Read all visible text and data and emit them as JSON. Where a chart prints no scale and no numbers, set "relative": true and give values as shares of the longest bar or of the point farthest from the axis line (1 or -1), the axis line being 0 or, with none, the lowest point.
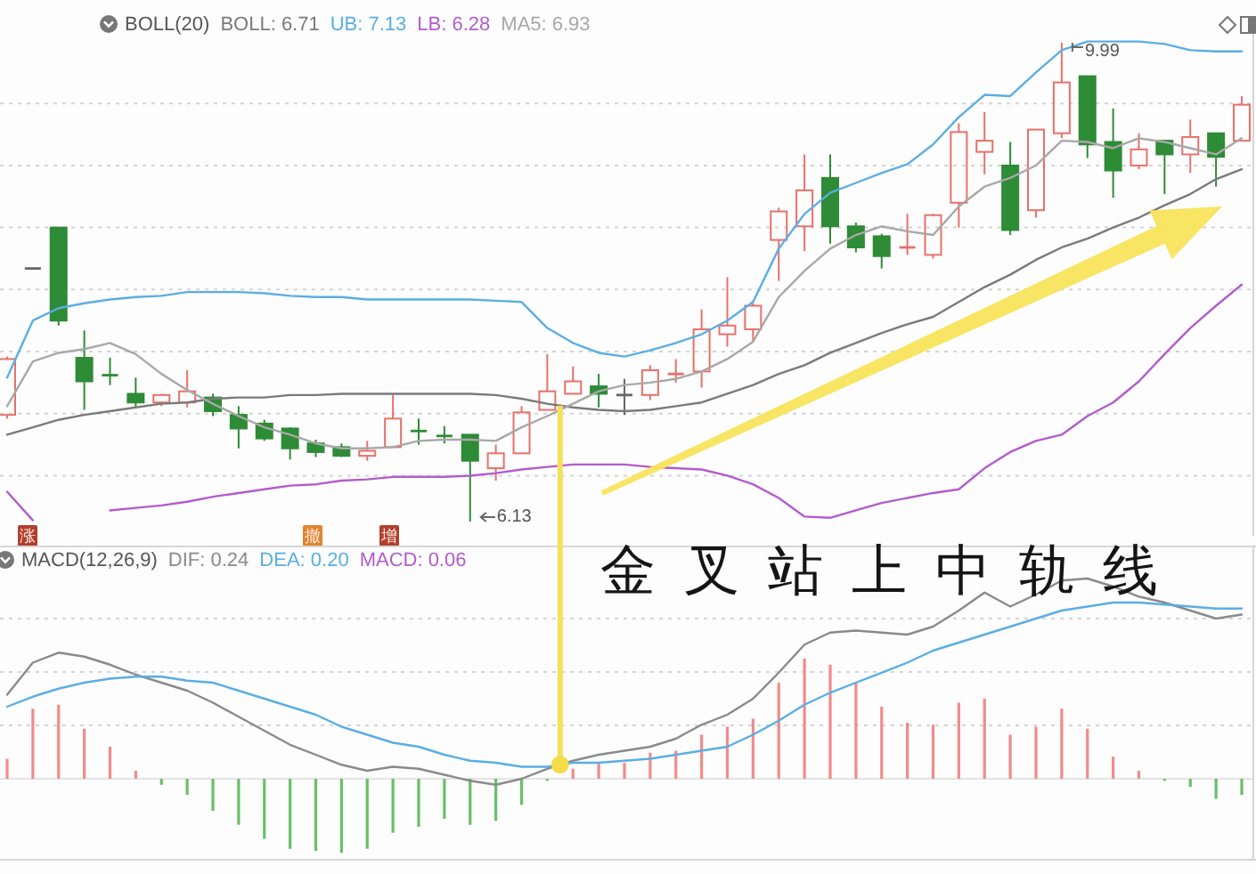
{
  "chart_data": [
    {
      "type": "candlestick",
      "legend_title": "BOLL(20)",
      "legend": "top left",
      "grid": "y",
      "categories": [
        null,
        null,
        null,
        null,
        null,
        null,
        null,
        null,
        null,
        null,
        null,
        null,
        null,
        null,
        null,
        null,
        null,
        null,
        null,
        null,
        null,
        null,
        null,
        null,
        null,
        null,
        null,
        null,
        null,
        null,
        null,
        null,
        null,
        null,
        null,
        null,
        null,
        null,
        null,
        null,
        null,
        null,
        null,
        null,
        null,
        null,
        null,
        null,
        null
      ],
      "ohlc": [
        [
          6.99,
          7.46,
          6.96,
          7.44
        ],
        [
          8.17,
          8.17,
          8.17,
          8.17
        ],
        [
          8.5,
          8.5,
          7.71,
          7.75
        ],
        [
          7.45,
          7.67,
          7.03,
          7.26
        ],
        [
          7.31,
          7.45,
          7.23,
          7.31
        ],
        [
          7.16,
          7.29,
          7.05,
          7.09
        ],
        [
          7.09,
          7.16,
          7.06,
          7.15
        ],
        [
          7.09,
          7.35,
          7.05,
          7.18
        ],
        [
          7.13,
          7.16,
          6.98,
          7.02
        ],
        [
          6.99,
          7.06,
          6.72,
          6.88
        ],
        [
          6.92,
          6.95,
          6.78,
          6.8
        ],
        [
          6.88,
          6.89,
          6.63,
          6.72
        ],
        [
          6.76,
          6.79,
          6.65,
          6.69
        ],
        [
          6.73,
          6.76,
          6.65,
          6.66
        ],
        [
          6.66,
          6.78,
          6.62,
          6.7
        ],
        [
          6.73,
          7.15,
          6.73,
          6.96
        ],
        [
          6.86,
          6.96,
          6.75,
          6.86
        ],
        [
          6.82,
          6.9,
          6.76,
          6.82
        ],
        [
          6.83,
          6.83,
          6.13,
          6.62
        ],
        [
          6.56,
          6.75,
          6.46,
          6.68
        ],
        [
          6.68,
          7.06,
          6.68,
          7.01
        ],
        [
          7.03,
          7.48,
          7.03,
          7.18
        ],
        [
          7.16,
          7.38,
          7.16,
          7.26
        ],
        [
          7.22,
          7.32,
          7.05,
          7.16
        ],
        [
          7.15,
          7.28,
          6.99,
          7.15
        ],
        [
          7.15,
          7.39,
          7.11,
          7.35
        ],
        [
          7.32,
          7.44,
          7.25,
          7.32
        ],
        [
          7.34,
          7.84,
          7.21,
          7.68
        ],
        [
          7.64,
          8.1,
          7.54,
          7.71
        ],
        [
          7.68,
          7.89,
          7.58,
          7.87
        ],
        [
          8.4,
          8.66,
          8.07,
          8.63
        ],
        [
          8.51,
          9.09,
          8.31,
          8.8
        ],
        [
          8.9,
          9.09,
          8.37,
          8.51
        ],
        [
          8.51,
          8.54,
          8.3,
          8.34
        ],
        [
          8.43,
          8.45,
          8.17,
          8.27
        ],
        [
          8.34,
          8.61,
          8.28,
          8.34
        ],
        [
          8.28,
          8.61,
          8.25,
          8.6
        ],
        [
          8.7,
          9.34,
          8.5,
          9.27
        ],
        [
          9.11,
          9.43,
          8.93,
          9.2
        ],
        [
          9.0,
          9.19,
          8.44,
          8.48
        ],
        [
          8.64,
          9.29,
          8.58,
          9.29
        ],
        [
          9.26,
          9.99,
          9.22,
          9.67
        ],
        [
          9.72,
          9.72,
          9.06,
          9.17
        ],
        [
          9.19,
          9.46,
          8.74,
          8.96
        ],
        [
          9.0,
          9.26,
          8.97,
          9.13
        ],
        [
          9.2,
          9.2,
          8.77,
          9.09
        ],
        [
          9.09,
          9.37,
          8.94,
          9.23
        ],
        [
          9.26,
          9.26,
          8.83,
          9.07
        ],
        [
          9.2,
          9.56,
          9.2,
          9.49
        ]
      ],
      "colors": [
        "#e9706a",
        "#666666",
        "#2e8b36",
        "#2e8b36",
        "#2e8b36",
        "#2e8b36",
        "#e9706a",
        "#e9706a",
        "#2e8b36",
        "#2e8b36",
        "#2e8b36",
        "#2e8b36",
        "#2e8b36",
        "#2e8b36",
        "#e9706a",
        "#e9706a",
        "#2e8b36",
        "#2e8b36",
        "#2e8b36",
        "#e9706a",
        "#e9706a",
        "#e9706a",
        "#e9706a",
        "#2e8b36",
        "#666666",
        "#e9706a",
        "#e9706a",
        "#e9706a",
        "#e9706a",
        "#e9706a",
        "#e9706a",
        "#e9706a",
        "#2e8b36",
        "#2e8b36",
        "#2e8b36",
        "#e9706a",
        "#e9706a",
        "#e9706a",
        "#e9706a",
        "#2e8b36",
        "#e9706a",
        "#e9706a",
        "#2e8b36",
        "#2e8b36",
        "#e9706a",
        "#2e8b36",
        "#e9706a",
        "#2e8b36",
        "#e9706a"
      ],
      "series": [
        {
          "name": "BOLL: 6.71",
          "type": "line",
          "color": "#7a7a7a",
          "values": [
            6.83,
            6.89,
            6.95,
            6.99,
            7.02,
            7.05,
            7.08,
            7.09,
            7.12,
            7.13,
            7.13,
            7.15,
            7.15,
            7.16,
            7.16,
            7.16,
            7.16,
            7.16,
            7.16,
            7.15,
            7.12,
            7.08,
            7.05,
            7.03,
            7.02,
            7.03,
            7.06,
            7.09,
            7.16,
            7.23,
            7.32,
            7.39,
            7.49,
            7.57,
            7.65,
            7.72,
            7.78,
            7.9,
            8.02,
            8.12,
            8.24,
            8.34,
            8.41,
            8.5,
            8.58,
            8.68,
            8.77,
            8.89,
            8.97
          ]
        },
        {
          "name": "UB: 7.13",
          "type": "line",
          "color": "#5aaee3",
          "values": [
            7.29,
            7.75,
            7.85,
            7.89,
            7.92,
            7.94,
            7.95,
            7.98,
            7.98,
            7.98,
            7.97,
            7.95,
            7.94,
            7.94,
            7.92,
            7.92,
            7.92,
            7.92,
            7.92,
            7.91,
            7.9,
            7.69,
            7.57,
            7.49,
            7.46,
            7.51,
            7.57,
            7.64,
            7.75,
            7.9,
            8.33,
            8.61,
            8.78,
            8.86,
            8.94,
            9.01,
            9.17,
            9.39,
            9.57,
            9.56,
            9.75,
            9.93,
            10.0,
            10.0,
            10.0,
            9.98,
            9.93,
            9.92,
            9.92
          ]
        },
        {
          "name": "LB: 6.28",
          "type": "line",
          "color": "#b25ccc",
          "values": [
            6.37,
            6.14,
            null,
            null,
            6.22,
            6.24,
            6.26,
            6.29,
            6.33,
            6.36,
            6.39,
            6.42,
            6.43,
            6.46,
            6.47,
            6.49,
            6.49,
            6.49,
            6.5,
            6.52,
            6.55,
            6.57,
            6.59,
            6.59,
            6.59,
            6.57,
            6.56,
            6.55,
            6.5,
            6.43,
            6.32,
            6.17,
            6.16,
            6.22,
            6.28,
            6.32,
            6.36,
            6.39,
            6.56,
            6.69,
            6.78,
            6.83,
            6.98,
            7.09,
            7.26,
            7.48,
            7.69,
            7.87,
            8.04
          ]
        },
        {
          "name": "MA5: 6.93",
          "type": "line",
          "color": "#a8a8a8",
          "values": [
            7.06,
            7.42,
            7.49,
            7.52,
            7.57,
            7.48,
            7.32,
            7.19,
            7.08,
            6.98,
            6.89,
            6.83,
            6.76,
            6.72,
            6.72,
            6.73,
            6.78,
            6.79,
            6.79,
            6.78,
            6.89,
            6.98,
            7.08,
            7.18,
            7.23,
            7.25,
            7.28,
            7.34,
            7.44,
            7.58,
            7.94,
            8.15,
            8.33,
            8.44,
            8.51,
            8.47,
            8.44,
            8.67,
            8.83,
            8.9,
            9.0,
            9.2,
            9.19,
            9.14,
            9.22,
            9.19,
            9.14,
            9.09,
            9.22
          ]
        }
      ],
      "annotations": [
        "9.99",
        "6.13",
        "涨",
        "撤",
        "增"
      ]
    },
    {
      "type": "bar",
      "relative": true,
      "legend_title": "MACD(12,26,9)",
      "legend": "top left",
      "grid": "y",
      "categories": [
        null,
        null,
        null,
        null,
        null,
        null,
        null,
        null,
        null,
        null,
        null,
        null,
        null,
        null,
        null,
        null,
        null,
        null,
        null,
        null,
        null,
        null,
        null,
        null,
        null,
        null,
        null,
        null,
        null,
        null,
        null,
        null,
        null,
        null,
        null,
        null,
        null,
        null,
        null,
        null,
        null,
        null,
        null,
        null,
        null,
        null,
        null,
        null,
        null
      ],
      "series": [
        {
          "name": "DIF: 0.24",
          "type": "line",
          "color": "#8a8a8a",
          "values": [
            0.42,
            0.58,
            0.63,
            0.61,
            0.57,
            0.52,
            0.48,
            0.44,
            0.38,
            0.31,
            0.24,
            0.17,
            0.12,
            0.07,
            0.04,
            0.06,
            0.05,
            0.02,
            -0.01,
            -0.03,
            0.0,
            0.05,
            0.09,
            0.12,
            0.14,
            0.16,
            0.2,
            0.27,
            0.32,
            0.4,
            0.53,
            0.67,
            0.73,
            0.74,
            0.73,
            0.72,
            0.76,
            0.84,
            0.93,
            0.86,
            0.92,
            0.99,
            1,
            0.96,
            0.91,
            0.88,
            0.84,
            0.8,
            0.82
          ]
        },
        {
          "name": "DEA: 0.20",
          "type": "line",
          "color": "#5aaee3",
          "values": [
            0.36,
            0.41,
            0.45,
            0.48,
            0.5,
            0.51,
            0.51,
            0.49,
            0.48,
            0.44,
            0.4,
            0.36,
            0.32,
            0.26,
            0.22,
            0.18,
            0.16,
            0.12,
            0.09,
            0.08,
            0.06,
            0.06,
            0.08,
            0.08,
            0.09,
            0.1,
            0.12,
            0.14,
            0.16,
            0.22,
            0.29,
            0.37,
            0.43,
            0.48,
            0.53,
            0.58,
            0.64,
            0.68,
            0.72,
            0.76,
            0.8,
            0.84,
            0.86,
            0.88,
            0.88,
            0.87,
            0.86,
            0.85,
            0.85
          ]
        },
        {
          "type": "bar",
          "colors": [
            "#f28b8b",
            "#f28b8b",
            "#f28b8b",
            "#f28b8b",
            "#f28b8b",
            "#f28b8b",
            "#6abf69",
            "#6abf69",
            "#6abf69",
            "#6abf69",
            "#6abf69",
            "#6abf69",
            "#6abf69",
            "#6abf69",
            "#6abf69",
            "#6abf69",
            "#6abf69",
            "#6abf69",
            "#6abf69",
            "#6abf69",
            "#6abf69",
            "#6abf69",
            "#f28b8b",
            "#f28b8b",
            "#f28b8b",
            "#f28b8b",
            "#f28b8b",
            "#f28b8b",
            "#f28b8b",
            "#f28b8b",
            "#f28b8b",
            "#f28b8b",
            "#f28b8b",
            "#f28b8b",
            "#f28b8b",
            "#f28b8b",
            "#f28b8b",
            "#f28b8b",
            "#f28b8b",
            "#f28b8b",
            "#f28b8b",
            "#f28b8b",
            "#f28b8b",
            "#f28b8b",
            "#f28b8b",
            "#6abf69",
            "#6abf69",
            "#6abf69",
            "#6abf69"
          ],
          "values": [
            0.1,
            0.35,
            0.37,
            0.25,
            0.16,
            0.04,
            -0.03,
            -0.08,
            -0.16,
            -0.23,
            -0.3,
            -0.35,
            -0.36,
            -0.37,
            -0.35,
            -0.27,
            -0.24,
            -0.2,
            -0.23,
            -0.21,
            -0.13,
            -0.01,
            0.05,
            0.08,
            0.08,
            0.13,
            0.14,
            0.22,
            0.26,
            0.3,
            0.48,
            0.6,
            0.57,
            0.48,
            0.36,
            0.28,
            0.27,
            0.38,
            0.4,
            0.22,
            0.26,
            0.35,
            0.25,
            0.11,
            0.04,
            -0.01,
            -0.04,
            -0.1,
            -0.08
          ]
        }
      ],
      "annotations": [
        "MACD: 0.06",
        "金叉站上中轨线"
      ]
    }
  ]
}
